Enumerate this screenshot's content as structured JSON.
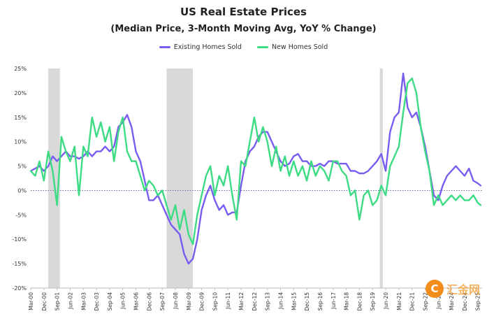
{
  "chart_data": {
    "type": "line",
    "title": "US Real Estate Prices",
    "subtitle": "(Median Price, 3-Month Moving Avg, YoY % Change)",
    "xlabel": "",
    "ylabel": "",
    "ylim": [
      -20,
      25
    ],
    "y_ticks": [
      "25%",
      "20%",
      "15%",
      "10%",
      "5%",
      "0%",
      "-5%",
      "-10%",
      "-15%",
      "-20%"
    ],
    "x_ticks": [
      "Mar-00",
      "Dec-00",
      "Sep-01",
      "Jun-02",
      "Mar-03",
      "Dec-03",
      "Sep-04",
      "Jun-05",
      "Mar-06",
      "Dec-06",
      "Sep-07",
      "Jun-08",
      "Mar-09",
      "Dec-09",
      "Sep-10",
      "Jun-11",
      "Mar-12",
      "Dec-12",
      "Sep-13",
      "Jun-14",
      "Mar-15",
      "Dec-15",
      "Sep-16",
      "Jun-17",
      "Mar-18",
      "Dec-18",
      "Sep-19",
      "Jun-20",
      "Mar-21",
      "Dec-21",
      "Sep-22",
      "Jun-23",
      "Mar-24",
      "Dec-24",
      "Sep-25"
    ],
    "recessions": [
      [
        "2001-03",
        "2001-11"
      ],
      [
        "2007-12",
        "2009-06"
      ],
      [
        "2020-02",
        "2020-04"
      ]
    ],
    "legend_position": "top-center",
    "series": [
      {
        "name": "Existing Homes Sold",
        "color": "#7b5cf0",
        "points": [
          [
            "2000-03",
            4
          ],
          [
            "2000-06",
            4.5
          ],
          [
            "2000-09",
            5
          ],
          [
            "2000-12",
            4
          ],
          [
            "2001-03",
            5
          ],
          [
            "2001-06",
            7
          ],
          [
            "2001-09",
            6
          ],
          [
            "2001-12",
            7
          ],
          [
            "2002-03",
            8
          ],
          [
            "2002-06",
            7
          ],
          [
            "2002-09",
            7
          ],
          [
            "2002-12",
            6.5
          ],
          [
            "2003-03",
            7
          ],
          [
            "2003-06",
            8
          ],
          [
            "2003-09",
            7
          ],
          [
            "2003-12",
            8
          ],
          [
            "2004-03",
            8
          ],
          [
            "2004-06",
            9
          ],
          [
            "2004-09",
            8
          ],
          [
            "2004-12",
            9
          ],
          [
            "2005-03",
            13
          ],
          [
            "2005-06",
            14
          ],
          [
            "2005-09",
            15.5
          ],
          [
            "2005-12",
            13
          ],
          [
            "2006-03",
            8
          ],
          [
            "2006-06",
            6
          ],
          [
            "2006-09",
            2
          ],
          [
            "2006-12",
            -2
          ],
          [
            "2007-03",
            -2
          ],
          [
            "2007-06",
            -1
          ],
          [
            "2007-09",
            -3
          ],
          [
            "2007-12",
            -5
          ],
          [
            "2008-03",
            -7
          ],
          [
            "2008-06",
            -8
          ],
          [
            "2008-09",
            -9
          ],
          [
            "2008-12",
            -13
          ],
          [
            "2009-03",
            -15
          ],
          [
            "2009-06",
            -14
          ],
          [
            "2009-09",
            -10
          ],
          [
            "2009-12",
            -4
          ],
          [
            "2010-03",
            -1
          ],
          [
            "2010-06",
            1
          ],
          [
            "2010-09",
            -2
          ],
          [
            "2010-12",
            -4
          ],
          [
            "2011-03",
            -3
          ],
          [
            "2011-06",
            -5
          ],
          [
            "2011-09",
            -4.5
          ],
          [
            "2011-12",
            -4.5
          ],
          [
            "2012-03",
            1
          ],
          [
            "2012-06",
            6
          ],
          [
            "2012-09",
            8
          ],
          [
            "2012-12",
            9
          ],
          [
            "2013-03",
            11
          ],
          [
            "2013-06",
            12
          ],
          [
            "2013-09",
            12
          ],
          [
            "2013-12",
            10
          ],
          [
            "2014-03",
            8
          ],
          [
            "2014-06",
            6
          ],
          [
            "2014-09",
            5
          ],
          [
            "2014-12",
            5.5
          ],
          [
            "2015-03",
            7
          ],
          [
            "2015-06",
            7.5
          ],
          [
            "2015-09",
            6
          ],
          [
            "2015-12",
            6
          ],
          [
            "2016-03",
            5
          ],
          [
            "2016-06",
            5
          ],
          [
            "2016-09",
            5.5
          ],
          [
            "2016-12",
            5
          ],
          [
            "2017-03",
            6
          ],
          [
            "2017-06",
            6
          ],
          [
            "2017-09",
            5.5
          ],
          [
            "2017-12",
            5.5
          ],
          [
            "2018-03",
            5.5
          ],
          [
            "2018-06",
            4
          ],
          [
            "2018-09",
            4
          ],
          [
            "2018-12",
            3.5
          ],
          [
            "2019-03",
            3.5
          ],
          [
            "2019-06",
            4
          ],
          [
            "2019-09",
            5
          ],
          [
            "2019-12",
            6
          ],
          [
            "2020-03",
            7.5
          ],
          [
            "2020-06",
            4
          ],
          [
            "2020-09",
            12
          ],
          [
            "2020-12",
            15
          ],
          [
            "2021-03",
            16
          ],
          [
            "2021-06",
            24
          ],
          [
            "2021-09",
            17
          ],
          [
            "2021-12",
            15
          ],
          [
            "2022-03",
            16
          ],
          [
            "2022-06",
            13
          ],
          [
            "2022-09",
            9
          ],
          [
            "2022-12",
            4
          ],
          [
            "2023-03",
            -1
          ],
          [
            "2023-06",
            -2
          ],
          [
            "2023-09",
            1
          ],
          [
            "2023-12",
            3
          ],
          [
            "2024-03",
            4
          ],
          [
            "2024-06",
            5
          ],
          [
            "2024-09",
            4
          ],
          [
            "2024-12",
            3
          ],
          [
            "2025-03",
            4.5
          ],
          [
            "2025-06",
            2
          ],
          [
            "2025-09",
            1.5
          ],
          [
            "2025-11",
            1
          ]
        ]
      },
      {
        "name": "New Homes Sold",
        "color": "#3ddc84",
        "points": [
          [
            "2000-03",
            4
          ],
          [
            "2000-06",
            3
          ],
          [
            "2000-09",
            6
          ],
          [
            "2000-12",
            2
          ],
          [
            "2001-03",
            8
          ],
          [
            "2001-06",
            4
          ],
          [
            "2001-09",
            -3
          ],
          [
            "2001-12",
            11
          ],
          [
            "2002-03",
            8
          ],
          [
            "2002-06",
            6
          ],
          [
            "2002-09",
            9
          ],
          [
            "2002-12",
            -1
          ],
          [
            "2003-03",
            9
          ],
          [
            "2003-06",
            7
          ],
          [
            "2003-09",
            15
          ],
          [
            "2003-12",
            11
          ],
          [
            "2004-03",
            14
          ],
          [
            "2004-06",
            10
          ],
          [
            "2004-09",
            13
          ],
          [
            "2004-12",
            6
          ],
          [
            "2005-03",
            12
          ],
          [
            "2005-06",
            15
          ],
          [
            "2005-09",
            8
          ],
          [
            "2005-12",
            6
          ],
          [
            "2006-03",
            6
          ],
          [
            "2006-06",
            3
          ],
          [
            "2006-09",
            0
          ],
          [
            "2006-12",
            2
          ],
          [
            "2007-03",
            1
          ],
          [
            "2007-06",
            -1
          ],
          [
            "2007-09",
            0
          ],
          [
            "2007-12",
            -3
          ],
          [
            "2008-03",
            -6
          ],
          [
            "2008-06",
            -3
          ],
          [
            "2008-09",
            -8
          ],
          [
            "2008-12",
            -4
          ],
          [
            "2009-03",
            -9
          ],
          [
            "2009-06",
            -11
          ],
          [
            "2009-09",
            -5
          ],
          [
            "2009-12",
            -1
          ],
          [
            "2010-03",
            3
          ],
          [
            "2010-06",
            5
          ],
          [
            "2010-09",
            -1
          ],
          [
            "2010-12",
            3
          ],
          [
            "2011-03",
            1
          ],
          [
            "2011-06",
            5
          ],
          [
            "2011-09",
            -1
          ],
          [
            "2011-12",
            -6
          ],
          [
            "2012-03",
            6
          ],
          [
            "2012-06",
            5
          ],
          [
            "2012-09",
            10
          ],
          [
            "2012-12",
            15
          ],
          [
            "2013-03",
            10
          ],
          [
            "2013-06",
            13
          ],
          [
            "2013-09",
            10
          ],
          [
            "2013-12",
            5
          ],
          [
            "2014-03",
            9
          ],
          [
            "2014-06",
            4
          ],
          [
            "2014-09",
            7
          ],
          [
            "2014-12",
            3
          ],
          [
            "2015-03",
            6
          ],
          [
            "2015-06",
            3
          ],
          [
            "2015-09",
            5
          ],
          [
            "2015-12",
            2
          ],
          [
            "2016-03",
            6
          ],
          [
            "2016-06",
            3
          ],
          [
            "2016-09",
            5
          ],
          [
            "2016-12",
            4
          ],
          [
            "2017-03",
            2
          ],
          [
            "2017-06",
            6
          ],
          [
            "2017-09",
            6
          ],
          [
            "2017-12",
            4
          ],
          [
            "2018-03",
            3
          ],
          [
            "2018-06",
            -1
          ],
          [
            "2018-09",
            0
          ],
          [
            "2018-12",
            -6
          ],
          [
            "2019-03",
            -1
          ],
          [
            "2019-06",
            0
          ],
          [
            "2019-09",
            -3
          ],
          [
            "2019-12",
            -2
          ],
          [
            "2020-03",
            1
          ],
          [
            "2020-06",
            -1
          ],
          [
            "2020-09",
            5
          ],
          [
            "2020-12",
            7
          ],
          [
            "2021-03",
            9
          ],
          [
            "2021-06",
            16
          ],
          [
            "2021-09",
            22
          ],
          [
            "2021-12",
            23
          ],
          [
            "2022-03",
            20
          ],
          [
            "2022-06",
            13
          ],
          [
            "2022-09",
            8
          ],
          [
            "2022-12",
            4
          ],
          [
            "2023-03",
            -3
          ],
          [
            "2023-06",
            -1
          ],
          [
            "2023-09",
            -3
          ],
          [
            "2023-12",
            -2
          ],
          [
            "2024-03",
            -1
          ],
          [
            "2024-06",
            -2
          ],
          [
            "2024-09",
            -1
          ],
          [
            "2024-12",
            -2
          ],
          [
            "2025-03",
            -2
          ],
          [
            "2025-06",
            -1
          ],
          [
            "2025-09",
            -2.5
          ],
          [
            "2025-11",
            -3
          ]
        ]
      }
    ]
  },
  "watermark": {
    "text": "汇金网"
  }
}
